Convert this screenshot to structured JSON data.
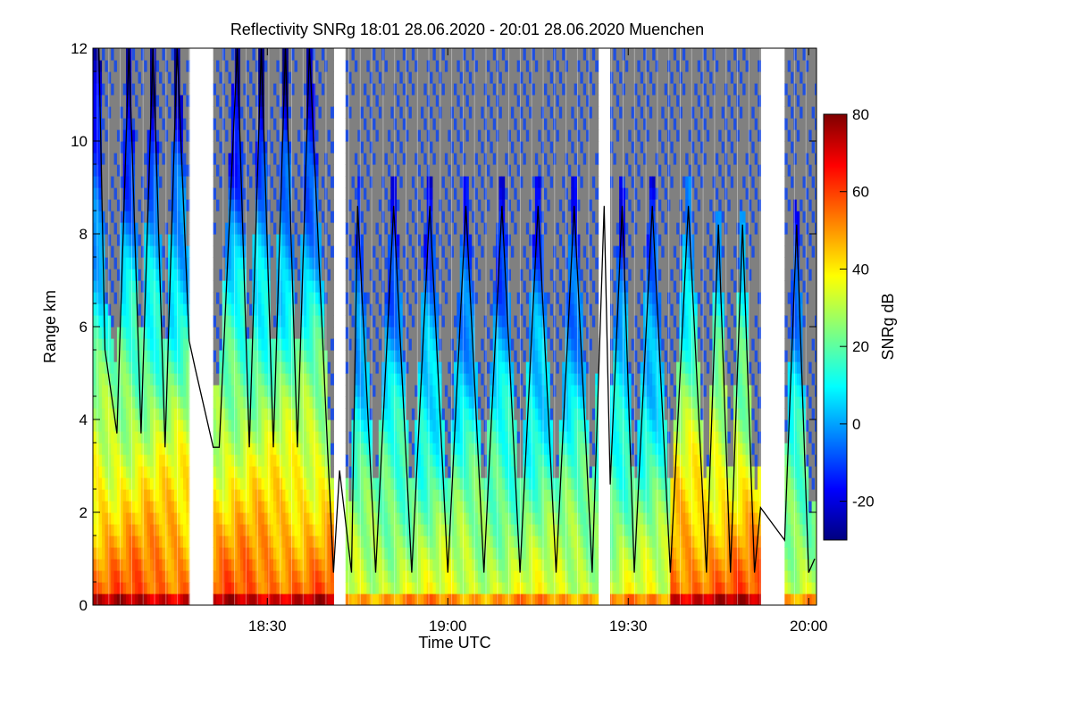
{
  "chart_data": {
    "type": "heatmap",
    "title": "Reflectivity SNRg   18:01 28.06.2020 - 20:01 28.06.2020 Muenchen",
    "xlabel": "Time UTC",
    "ylabel": "Range km",
    "x_range_utc": [
      "18:01",
      "20:01"
    ],
    "x_ticks": [
      "18:30",
      "19:00",
      "19:30",
      "20:00"
    ],
    "ylim": [
      0,
      12
    ],
    "y_ticks": [
      0,
      2,
      4,
      6,
      8,
      10,
      12
    ],
    "colorbar": {
      "label": "SNRg dB",
      "range": [
        -30,
        80
      ],
      "ticks": [
        -20,
        0,
        20,
        40,
        60,
        80
      ],
      "colormap": "jet"
    },
    "data_gaps_utc": [
      [
        "18:17",
        "18:21"
      ],
      [
        "18:41",
        "18:43"
      ],
      [
        "19:25",
        "19:27"
      ],
      [
        "19:52",
        "19:56"
      ]
    ],
    "no_signal_color": "#808080",
    "signal_top_line": {
      "color": "#000000",
      "time_min": [
        1,
        2,
        4,
        6,
        8,
        10,
        12,
        14,
        16,
        17,
        20,
        21,
        24,
        26,
        28,
        30,
        32,
        34,
        36,
        39,
        40,
        41,
        43,
        44,
        47,
        50,
        53,
        56,
        59,
        62,
        65,
        68,
        71,
        74,
        77,
        80,
        83,
        85,
        86,
        88,
        90,
        93,
        96,
        99,
        102,
        104,
        106,
        108,
        110,
        111,
        115,
        117,
        119,
        120
      ],
      "height_km": [
        12,
        5.5,
        3.7,
        12,
        3.7,
        12,
        3.4,
        12,
        5.7,
        5.1,
        3.4,
        3.4,
        12,
        3.4,
        12,
        3.4,
        12,
        3.4,
        12,
        3.4,
        0.7,
        2.9,
        0.7,
        8.6,
        0.7,
        8.6,
        0.7,
        8.6,
        0.7,
        8.6,
        0.7,
        8.6,
        0.7,
        8.6,
        0.7,
        8.6,
        0.7,
        8.6,
        2.6,
        8.6,
        0.7,
        8.6,
        0.7,
        8.6,
        0.7,
        8.2,
        0.7,
        8.2,
        0.7,
        2.1,
        1.4,
        8.2,
        0.7,
        1.0
      ]
    }
  }
}
